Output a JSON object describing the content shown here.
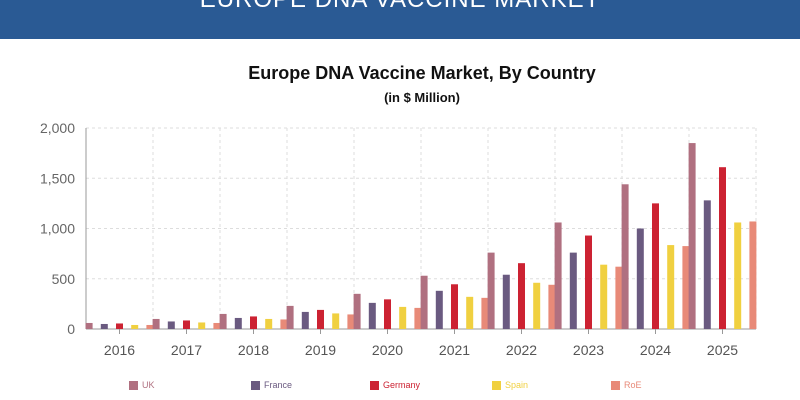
{
  "header": {
    "banner_title": "EUROPE DNA VACCINE MARKET"
  },
  "chart_data": {
    "type": "bar",
    "title": "Europe DNA Vaccine Market, By Country",
    "subtitle": "(in $ Million)",
    "xlabel": "",
    "ylabel": "",
    "ylim": [
      0,
      2000
    ],
    "yticks": [
      "0",
      "500",
      "1,000",
      "1,500",
      "2,000"
    ],
    "ytick_values": [
      0,
      500,
      1000,
      1500,
      2000
    ],
    "grid": true,
    "legend_position": "bottom",
    "categories": [
      "2016",
      "2017",
      "2018",
      "2019",
      "2020",
      "2021",
      "2022",
      "2023",
      "2024",
      "2025"
    ],
    "series": [
      {
        "name": "UK",
        "color": "#b07080",
        "values": [
          60,
          100,
          150,
          230,
          350,
          530,
          760,
          1060,
          1440,
          1850
        ]
      },
      {
        "name": "France",
        "color": "#6a5a80",
        "values": [
          50,
          75,
          110,
          170,
          260,
          380,
          540,
          760,
          1000,
          1280
        ]
      },
      {
        "name": "Germany",
        "color": "#cc2232",
        "values": [
          55,
          85,
          125,
          190,
          295,
          445,
          655,
          930,
          1250,
          1610
        ]
      },
      {
        "name": "Spain",
        "color": "#f0d040",
        "values": [
          40,
          65,
          100,
          155,
          220,
          320,
          460,
          640,
          835,
          1060
        ]
      },
      {
        "name": "RoE",
        "color": "#e88a78",
        "values": [
          40,
          60,
          95,
          145,
          210,
          310,
          440,
          620,
          825,
          1070
        ]
      }
    ]
  }
}
